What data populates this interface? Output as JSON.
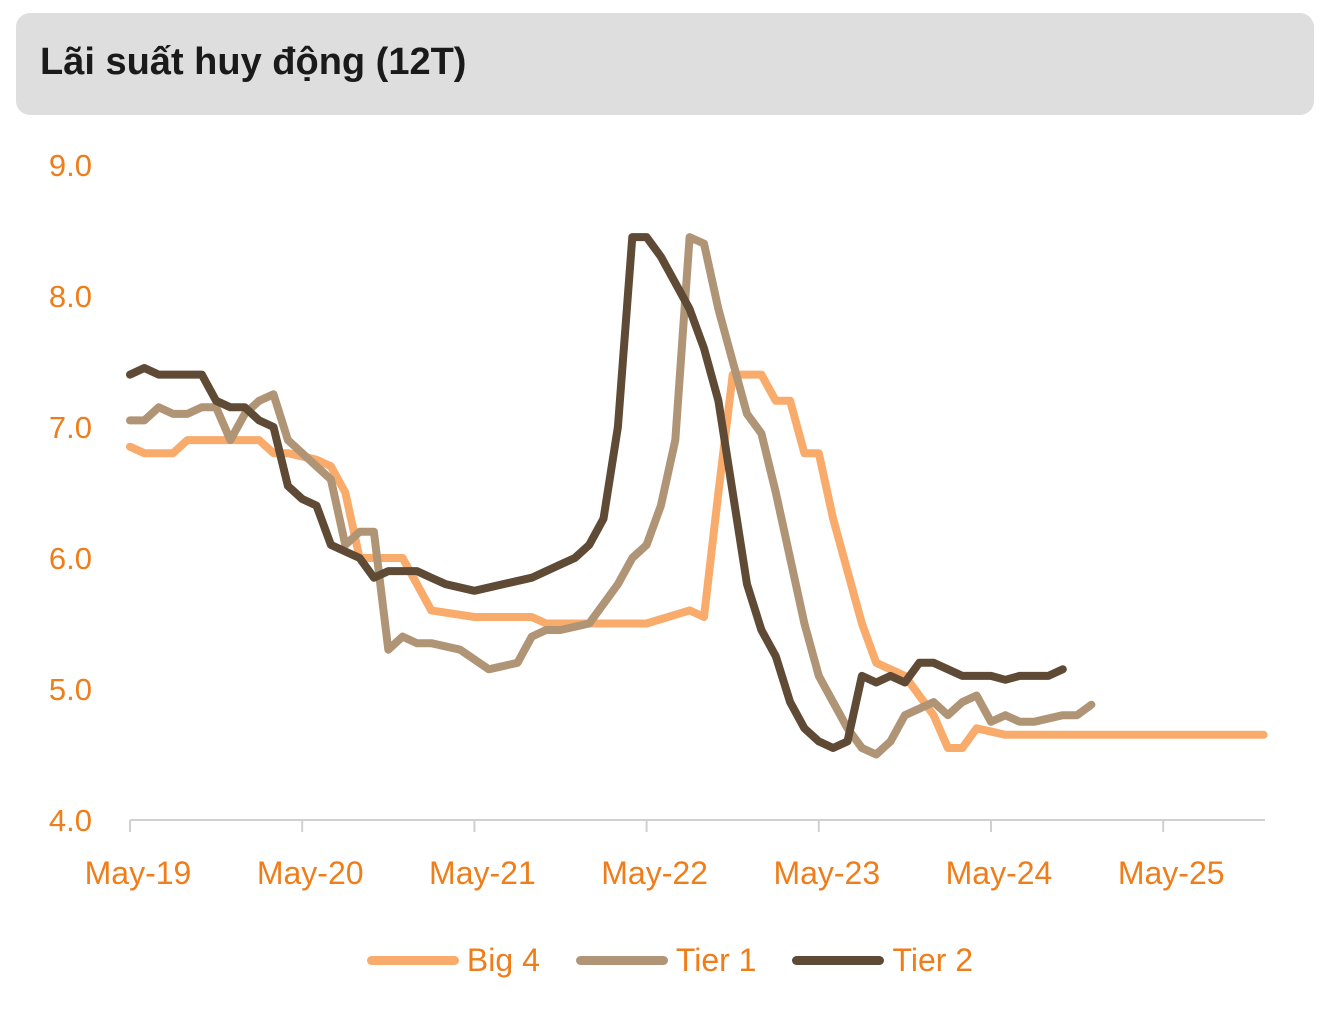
{
  "header": {
    "title": "Lãi suất huy động (12T)"
  },
  "chart_data": {
    "type": "line",
    "title": "Lãi suất huy động (12T)",
    "xlabel": "",
    "ylabel": "",
    "ylim": [
      4.0,
      9.0
    ],
    "yticks": [
      "9.0",
      "8.0",
      "7.0",
      "6.0",
      "5.0",
      "4.0"
    ],
    "x_tick_labels": [
      "May-19",
      "May-20",
      "May-21",
      "May-22",
      "May-23",
      "May-24",
      "May-25"
    ],
    "x_range": [
      "2019-05",
      "2025-12"
    ],
    "grid": false,
    "legend_position": "bottom",
    "text_color": "#ef7d1a",
    "series": [
      {
        "name": "Big 4",
        "color": "#f9ab6b",
        "points": [
          [
            "2019-05",
            6.85
          ],
          [
            "2019-06",
            6.8
          ],
          [
            "2019-08",
            6.8
          ],
          [
            "2019-09",
            6.9
          ],
          [
            "2019-12",
            6.9
          ],
          [
            "2020-02",
            6.9
          ],
          [
            "2020-03",
            6.8
          ],
          [
            "2020-04",
            6.8
          ],
          [
            "2020-06",
            6.75
          ],
          [
            "2020-07",
            6.7
          ],
          [
            "2020-08",
            6.5
          ],
          [
            "2020-09",
            6.0
          ],
          [
            "2020-12",
            6.0
          ],
          [
            "2021-01",
            5.8
          ],
          [
            "2021-02",
            5.6
          ],
          [
            "2021-05",
            5.55
          ],
          [
            "2021-09",
            5.55
          ],
          [
            "2021-10",
            5.5
          ],
          [
            "2022-02",
            5.5
          ],
          [
            "2022-05",
            5.5
          ],
          [
            "2022-08",
            5.6
          ],
          [
            "2022-09",
            5.55
          ],
          [
            "2022-10",
            6.5
          ],
          [
            "2022-11",
            7.4
          ],
          [
            "2023-01",
            7.4
          ],
          [
            "2023-02",
            7.2
          ],
          [
            "2023-03",
            7.2
          ],
          [
            "2023-04",
            6.8
          ],
          [
            "2023-05",
            6.8
          ],
          [
            "2023-06",
            6.3
          ],
          [
            "2023-08",
            5.5
          ],
          [
            "2023-09",
            5.2
          ],
          [
            "2023-11",
            5.1
          ],
          [
            "2024-01",
            4.8
          ],
          [
            "2024-02",
            4.55
          ],
          [
            "2024-03",
            4.55
          ],
          [
            "2024-04",
            4.7
          ],
          [
            "2024-06",
            4.65
          ],
          [
            "2025-12",
            4.65
          ]
        ]
      },
      {
        "name": "Tier 1",
        "color": "#b09476",
        "points": [
          [
            "2019-05",
            7.05
          ],
          [
            "2019-06",
            7.05
          ],
          [
            "2019-07",
            7.15
          ],
          [
            "2019-08",
            7.1
          ],
          [
            "2019-09",
            7.1
          ],
          [
            "2019-10",
            7.15
          ],
          [
            "2019-11",
            7.15
          ],
          [
            "2019-12",
            6.9
          ],
          [
            "2020-01",
            7.1
          ],
          [
            "2020-02",
            7.2
          ],
          [
            "2020-03",
            7.25
          ],
          [
            "2020-04",
            6.9
          ],
          [
            "2020-05",
            6.8
          ],
          [
            "2020-06",
            6.7
          ],
          [
            "2020-07",
            6.6
          ],
          [
            "2020-08",
            6.1
          ],
          [
            "2020-09",
            6.2
          ],
          [
            "2020-10",
            6.2
          ],
          [
            "2020-11",
            5.3
          ],
          [
            "2020-12",
            5.4
          ],
          [
            "2021-01",
            5.35
          ],
          [
            "2021-02",
            5.35
          ],
          [
            "2021-04",
            5.3
          ],
          [
            "2021-06",
            5.15
          ],
          [
            "2021-08",
            5.2
          ],
          [
            "2021-09",
            5.4
          ],
          [
            "2021-10",
            5.45
          ],
          [
            "2021-11",
            5.45
          ],
          [
            "2022-01",
            5.5
          ],
          [
            "2022-03",
            5.8
          ],
          [
            "2022-04",
            6.0
          ],
          [
            "2022-05",
            6.1
          ],
          [
            "2022-06",
            6.4
          ],
          [
            "2022-07",
            6.9
          ],
          [
            "2022-08",
            8.45
          ],
          [
            "2022-09",
            8.4
          ],
          [
            "2022-10",
            7.9
          ],
          [
            "2022-11",
            7.5
          ],
          [
            "2022-12",
            7.1
          ],
          [
            "2023-01",
            6.95
          ],
          [
            "2023-02",
            6.5
          ],
          [
            "2023-03",
            6.0
          ],
          [
            "2023-04",
            5.5
          ],
          [
            "2023-05",
            5.1
          ],
          [
            "2023-06",
            4.9
          ],
          [
            "2023-07",
            4.7
          ],
          [
            "2023-08",
            4.55
          ],
          [
            "2023-09",
            4.5
          ],
          [
            "2023-10",
            4.6
          ],
          [
            "2023-11",
            4.8
          ],
          [
            "2023-12",
            4.85
          ],
          [
            "2024-01",
            4.9
          ],
          [
            "2024-02",
            4.8
          ],
          [
            "2024-03",
            4.9
          ],
          [
            "2024-04",
            4.95
          ],
          [
            "2024-05",
            4.75
          ],
          [
            "2024-06",
            4.8
          ],
          [
            "2024-07",
            4.75
          ],
          [
            "2024-08",
            4.75
          ],
          [
            "2024-10",
            4.8
          ],
          [
            "2024-11",
            4.8
          ],
          [
            "2024-12",
            4.88
          ]
        ]
      },
      {
        "name": "Tier 2",
        "color": "#5e4a35",
        "points": [
          [
            "2019-05",
            7.4
          ],
          [
            "2019-06",
            7.45
          ],
          [
            "2019-07",
            7.4
          ],
          [
            "2019-09",
            7.4
          ],
          [
            "2019-10",
            7.4
          ],
          [
            "2019-11",
            7.2
          ],
          [
            "2019-12",
            7.15
          ],
          [
            "2020-01",
            7.15
          ],
          [
            "2020-02",
            7.05
          ],
          [
            "2020-03",
            7.0
          ],
          [
            "2020-04",
            6.55
          ],
          [
            "2020-05",
            6.45
          ],
          [
            "2020-06",
            6.4
          ],
          [
            "2020-07",
            6.1
          ],
          [
            "2020-08",
            6.05
          ],
          [
            "2020-09",
            6.0
          ],
          [
            "2020-10",
            5.85
          ],
          [
            "2020-11",
            5.9
          ],
          [
            "2021-01",
            5.9
          ],
          [
            "2021-02",
            5.85
          ],
          [
            "2021-03",
            5.8
          ],
          [
            "2021-05",
            5.75
          ],
          [
            "2021-07",
            5.8
          ],
          [
            "2021-09",
            5.85
          ],
          [
            "2021-10",
            5.9
          ],
          [
            "2021-11",
            5.95
          ],
          [
            "2021-12",
            6.0
          ],
          [
            "2022-01",
            6.1
          ],
          [
            "2022-02",
            6.3
          ],
          [
            "2022-03",
            7.0
          ],
          [
            "2022-04",
            8.45
          ],
          [
            "2022-05",
            8.45
          ],
          [
            "2022-06",
            8.3
          ],
          [
            "2022-07",
            8.1
          ],
          [
            "2022-08",
            7.9
          ],
          [
            "2022-09",
            7.6
          ],
          [
            "2022-10",
            7.2
          ],
          [
            "2022-11",
            6.5
          ],
          [
            "2022-12",
            5.8
          ],
          [
            "2023-01",
            5.45
          ],
          [
            "2023-02",
            5.25
          ],
          [
            "2023-03",
            4.9
          ],
          [
            "2023-04",
            4.7
          ],
          [
            "2023-05",
            4.6
          ],
          [
            "2023-06",
            4.55
          ],
          [
            "2023-07",
            4.6
          ],
          [
            "2023-08",
            5.1
          ],
          [
            "2023-09",
            5.05
          ],
          [
            "2023-10",
            5.1
          ],
          [
            "2023-11",
            5.05
          ],
          [
            "2023-12",
            5.2
          ],
          [
            "2024-01",
            5.2
          ],
          [
            "2024-02",
            5.15
          ],
          [
            "2024-03",
            5.1
          ],
          [
            "2024-04",
            5.1
          ],
          [
            "2024-05",
            5.1
          ],
          [
            "2024-06",
            5.07
          ],
          [
            "2024-07",
            5.1
          ],
          [
            "2024-08",
            5.1
          ],
          [
            "2024-09",
            5.1
          ],
          [
            "2024-10",
            5.15
          ]
        ]
      }
    ]
  }
}
